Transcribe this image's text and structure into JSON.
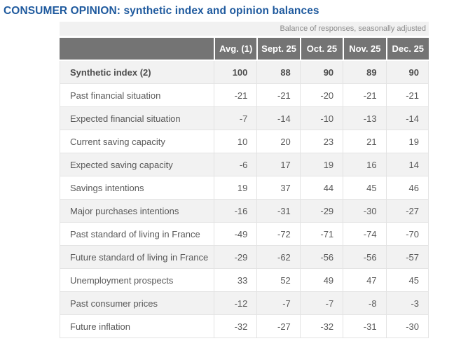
{
  "page": {
    "title": "CONSUMER OPINION: synthetic index and opinion balances",
    "note": "Balance of responses, seasonally adjusted"
  },
  "colors": {
    "title_blue": "#1f5a9e",
    "header_gray": "#747474",
    "note_strip_bg": "#f1f1f1",
    "row_shaded_bg": "#f2f2f2",
    "cell_text": "#595959",
    "border": "#e3e3e3"
  },
  "table": {
    "columns": [
      "",
      "Avg. (1)",
      "Sept. 25",
      "Oct. 25",
      "Nov. 25",
      "Dec. 25"
    ],
    "rows": [
      {
        "label": "Synthetic index (2)",
        "values": [
          "100",
          "88",
          "90",
          "89",
          "90"
        ],
        "bold": true
      },
      {
        "label": "Past financial situation",
        "values": [
          "-21",
          "-21",
          "-20",
          "-21",
          "-21"
        ],
        "bold": false
      },
      {
        "label": "Expected financial situation",
        "values": [
          "-7",
          "-14",
          "-10",
          "-13",
          "-14"
        ],
        "bold": false
      },
      {
        "label": "Current saving capacity",
        "values": [
          "10",
          "20",
          "23",
          "21",
          "19"
        ],
        "bold": false
      },
      {
        "label": "Expected saving capacity",
        "values": [
          "-6",
          "17",
          "19",
          "16",
          "14"
        ],
        "bold": false
      },
      {
        "label": "Savings intentions",
        "values": [
          "19",
          "37",
          "44",
          "45",
          "46"
        ],
        "bold": false
      },
      {
        "label": "Major purchases intentions",
        "values": [
          "-16",
          "-31",
          "-29",
          "-30",
          "-27"
        ],
        "bold": false
      },
      {
        "label": "Past standard of living in France",
        "values": [
          "-49",
          "-72",
          "-71",
          "-74",
          "-70"
        ],
        "bold": false
      },
      {
        "label": "Future standard of living in France",
        "values": [
          "-29",
          "-62",
          "-56",
          "-56",
          "-57"
        ],
        "bold": false
      },
      {
        "label": "Unemployment prospects",
        "values": [
          "33",
          "52",
          "49",
          "47",
          "45"
        ],
        "bold": false
      },
      {
        "label": "Past consumer prices",
        "values": [
          "-12",
          "-7",
          "-7",
          "-8",
          "-3"
        ],
        "bold": false
      },
      {
        "label": "Future inflation",
        "values": [
          "-32",
          "-27",
          "-32",
          "-31",
          "-30"
        ],
        "bold": false
      }
    ]
  }
}
